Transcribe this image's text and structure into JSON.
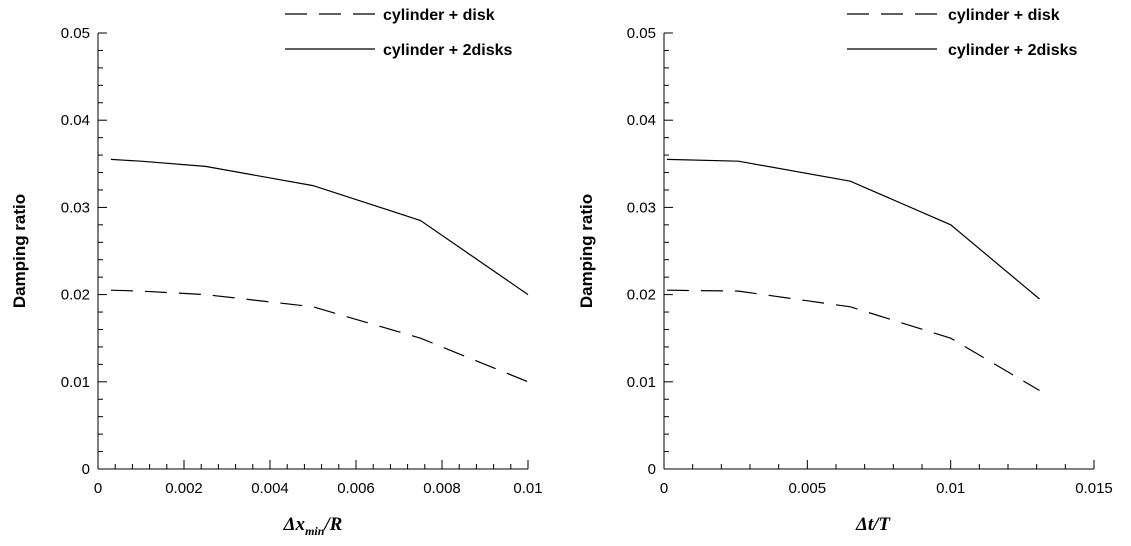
{
  "chart_data": [
    {
      "type": "line",
      "title": "",
      "ylabel": "Damping ratio",
      "xlabel_main": "Δx",
      "xlabel_sub": "min",
      "xlabel_tail": "/R",
      "xlim": [
        0,
        0.01
      ],
      "ylim": [
        0,
        0.05
      ],
      "x_ticks": [
        0,
        0.002,
        0.004,
        0.006,
        0.008,
        0.01
      ],
      "x_tick_labels": [
        "0",
        "0.002",
        "0.004",
        "0.006",
        "0.008",
        "0.01"
      ],
      "y_ticks": [
        0,
        0.01,
        0.02,
        0.03,
        0.04,
        0.05
      ],
      "y_tick_labels": [
        "0",
        "0.01",
        "0.02",
        "0.03",
        "0.04",
        "0.05"
      ],
      "grid": false,
      "legend_position": "top-right",
      "series": [
        {
          "name": "cylinder + disk",
          "style": "dashed",
          "x": [
            0.0003,
            0.001,
            0.0025,
            0.005,
            0.0075,
            0.01
          ],
          "y": [
            0.0205,
            0.0204,
            0.02,
            0.0186,
            0.015,
            0.01
          ]
        },
        {
          "name": "cylinder + 2disks",
          "style": "solid",
          "x": [
            0.0003,
            0.001,
            0.0025,
            0.005,
            0.0075,
            0.01
          ],
          "y": [
            0.0355,
            0.0353,
            0.0347,
            0.0325,
            0.0285,
            0.02
          ]
        }
      ]
    },
    {
      "type": "line",
      "title": "",
      "ylabel": "Damping ratio",
      "xlabel_main": "Δt/T",
      "xlabel_sub": "",
      "xlabel_tail": "",
      "xlim": [
        0,
        0.015
      ],
      "ylim": [
        0,
        0.05
      ],
      "x_ticks": [
        0,
        0.005,
        0.01,
        0.015
      ],
      "x_tick_labels": [
        "0",
        "0.005",
        "0.01",
        "0.015"
      ],
      "y_ticks": [
        0,
        0.01,
        0.02,
        0.03,
        0.04,
        0.05
      ],
      "y_tick_labels": [
        "0",
        "0.01",
        "0.02",
        "0.03",
        "0.04",
        "0.05"
      ],
      "grid": false,
      "legend_position": "top-right",
      "series": [
        {
          "name": "cylinder + disk",
          "style": "dashed",
          "x": [
            0.0001,
            0.0026,
            0.0065,
            0.01,
            0.0131
          ],
          "y": [
            0.0205,
            0.0204,
            0.0186,
            0.015,
            0.009
          ]
        },
        {
          "name": "cylinder + 2disks",
          "style": "solid",
          "x": [
            0.0001,
            0.0026,
            0.0065,
            0.01,
            0.0131
          ],
          "y": [
            0.0355,
            0.0353,
            0.033,
            0.028,
            0.0195
          ]
        }
      ]
    }
  ]
}
